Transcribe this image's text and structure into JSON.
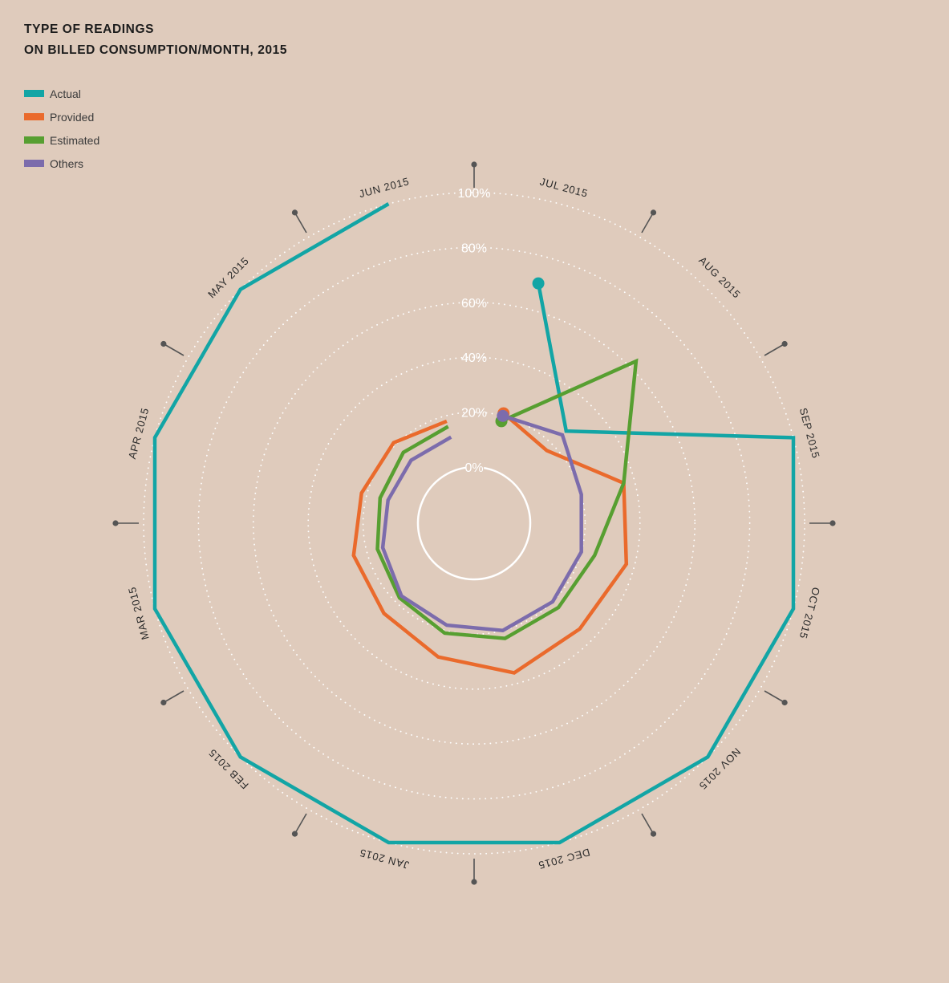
{
  "title": {
    "line1": "TYPE OF READINGS",
    "line2": "ON BILLED CONSUMPTION/MONTH, 2015"
  },
  "chart_data": {
    "type": "radial-spiral-line",
    "title": "TYPE OF READINGS ON BILLED CONSUMPTION/MONTH, 2015",
    "categories": [
      "JUL 2015",
      "AUG 2015",
      "SEP 2015",
      "OCT 2015",
      "NOV 2015",
      "DEC 2015",
      "JAN 2015",
      "FEB 2015",
      "MAR 2015",
      "APR 2015",
      "MAY 2015",
      "JUN 2015"
    ],
    "radial_ticks": [
      "0%",
      "20%",
      "40%",
      "60%",
      "80%",
      "100%"
    ],
    "rlim": [
      0,
      100
    ],
    "grid": true,
    "legend": "top-left",
    "series": [
      {
        "name": "Actual",
        "color": "#12a5a5",
        "values": [
          70,
          27,
          100,
          100,
          100,
          100,
          100,
          100,
          100,
          100,
          100,
          100
        ]
      },
      {
        "name": "Provided",
        "color": "#ea6a2c",
        "values": [
          21,
          17,
          36,
          37,
          34,
          36,
          30,
          26,
          25,
          22,
          21,
          18
        ]
      },
      {
        "name": "Estimated",
        "color": "#579f31",
        "values": [
          18,
          63,
          36,
          25,
          23,
          23,
          21,
          18,
          16,
          15,
          16,
          16
        ]
      },
      {
        "name": "Others",
        "color": "#7c6cac",
        "values": [
          20,
          25,
          20,
          20,
          20,
          20,
          18,
          17,
          14,
          12,
          12,
          12
        ]
      }
    ]
  }
}
